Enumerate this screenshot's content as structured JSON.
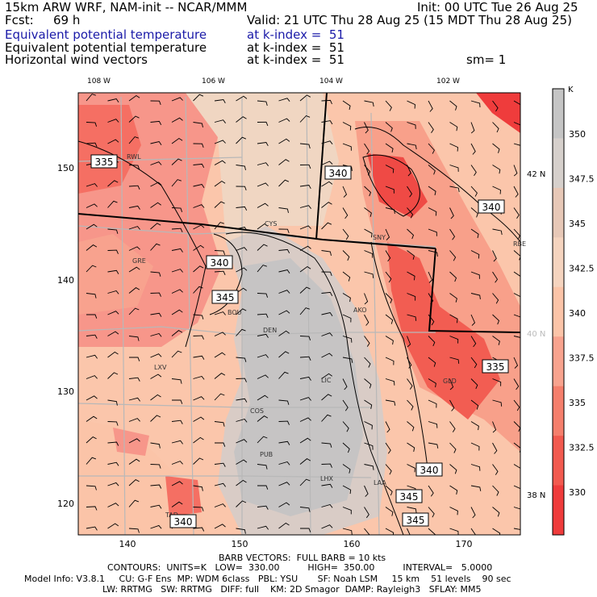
{
  "header": {
    "model_line": "15km ARW WRF, NAM-init -- NCAR/MMM",
    "init": "Init: 00 UTC Tue 26 Aug 25",
    "fcst_label": "Fcst:",
    "fcst_hours": "69 h",
    "valid": "Valid: 21 UTC Thu 28 Aug 25 (15 MDT Thu 28 Aug 25)",
    "fields": [
      {
        "name": "Equivalent potential temperature",
        "level": "at k-index =  51",
        "extra": ""
      },
      {
        "name": "Equivalent potential temperature",
        "level": "at k-index =  51",
        "extra": ""
      },
      {
        "name": "Horizontal wind vectors",
        "level": "at k-index =  51",
        "extra": "sm= 1"
      }
    ]
  },
  "map": {
    "top_lon_labels": [
      "108 W",
      "106 W",
      "104 W",
      "102 W"
    ],
    "right_lat_labels": [
      "42 N",
      "40 N",
      "38 N"
    ],
    "bottom_ticks": [
      "140",
      "150",
      "160",
      "170"
    ],
    "left_ticks": [
      "150",
      "140",
      "130",
      "120"
    ],
    "stations": [
      "RWL",
      "CYS",
      "SNY",
      "RBE",
      "GRE",
      "BOU",
      "DEN",
      "AKO",
      "LXV",
      "LIC",
      "GLD",
      "COS",
      "PUB",
      "LHX",
      "LAA",
      "TAD"
    ],
    "contour_labels": [
      "335",
      "340",
      "340",
      "340",
      "345",
      "335",
      "340",
      "345",
      "345",
      "340"
    ],
    "colors": {
      "low": "#f23c3c",
      "mid": "#fbd3bc",
      "high": "#c4c4c4",
      "state_lines": "#b8b8b8"
    }
  },
  "colorbar": {
    "unit": "K",
    "labels": [
      "350",
      "347.5",
      "345",
      "342.5",
      "340",
      "337.5",
      "335",
      "332.5",
      "330"
    ],
    "colors": [
      "#c5c5c5",
      "#d6d0cc",
      "#e7c8b7",
      "#f5d4bf",
      "#fbc4a8",
      "#f8a38e",
      "#f57f6c",
      "#f25a4f",
      "#ef3c3c"
    ]
  },
  "footer": {
    "barb": "BARB VECTORS:  FULL BARB = 10 kts",
    "contours": "CONTOURS:  UNITS=K   LOW=  330.00          HIGH=  350.00          INTERVAL=   5.0000",
    "model_info": "Model Info: V3.8.1     CU: G-F Ens  MP: WDM 6class   PBL: YSU       SF: Noah LSM     15 km    51 levels    90 sec",
    "model_info2": "LW: RRTMG   SW: RRTMG   DIFF: full    KM: 2D Smagor  DAMP: Rayleigh3   SFLAY: MM5"
  }
}
